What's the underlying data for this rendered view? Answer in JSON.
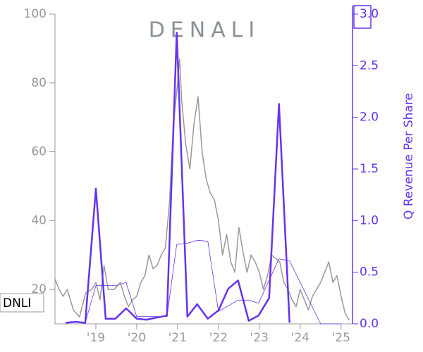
{
  "chart_data": {
    "type": "line",
    "logo": "DENALI",
    "y2label": "Q Revenue Per Share",
    "xlim": [
      2018.0,
      2025.28
    ],
    "xticks": [
      {
        "value": 2019,
        "label": "'19"
      },
      {
        "value": 2020,
        "label": "'20"
      },
      {
        "value": 2021,
        "label": "'21"
      },
      {
        "value": 2022,
        "label": "'22"
      },
      {
        "value": 2023,
        "label": "'23"
      },
      {
        "value": 2024,
        "label": "'24"
      },
      {
        "value": 2025,
        "label": "'25"
      }
    ],
    "ylim": [
      10,
      100
    ],
    "yticks": [
      20,
      40,
      60,
      80,
      100
    ],
    "y2lim": [
      0,
      3
    ],
    "y2ticks": [
      {
        "value": 0,
        "label": "0.0"
      },
      0.5,
      {
        "value": 1,
        "label": "1.0"
      },
      1.5,
      {
        "value": 2,
        "label": "2.0"
      },
      2.5,
      {
        "value": 3,
        "label": "3.0"
      }
    ],
    "series": [
      {
        "name": "DNLI",
        "color": "#999999",
        "width": 1.5,
        "x": [
          2018.0,
          2018.1,
          2018.2,
          2018.3,
          2018.45,
          2018.6,
          2018.75,
          2018.9,
          2019.0,
          2019.1,
          2019.2,
          2019.3,
          2019.45,
          2019.6,
          2019.7,
          2019.8,
          2019.9,
          2020.0,
          2020.1,
          2020.2,
          2020.3,
          2020.4,
          2020.5,
          2020.6,
          2020.7,
          2020.8,
          2020.9,
          2021.0,
          2021.05,
          2021.1,
          2021.2,
          2021.3,
          2021.4,
          2021.5,
          2021.6,
          2021.7,
          2021.8,
          2021.9,
          2022.0,
          2022.1,
          2022.2,
          2022.3,
          2022.4,
          2022.5,
          2022.6,
          2022.7,
          2022.8,
          2022.9,
          2023.0,
          2023.1,
          2023.2,
          2023.3,
          2023.4,
          2023.5,
          2023.6,
          2023.7,
          2023.8,
          2023.9,
          2024.0,
          2024.1,
          2024.2,
          2024.3,
          2024.5,
          2024.6,
          2024.7,
          2024.8,
          2024.9,
          2025.0,
          2025.1,
          2025.2
        ],
        "values": [
          23,
          20,
          18,
          20,
          14,
          12,
          19,
          20,
          22,
          17,
          27,
          20,
          20,
          22,
          18,
          15,
          17,
          18,
          22,
          24,
          30,
          26,
          27,
          30,
          32,
          45,
          68,
          80,
          87,
          75,
          62,
          55,
          68,
          76,
          60,
          52,
          48,
          46,
          40,
          30,
          36,
          28,
          25,
          38,
          31,
          25,
          30,
          28,
          25,
          20,
          24,
          30,
          29,
          28,
          22,
          20,
          17,
          15,
          20,
          17,
          14,
          18,
          22,
          25,
          28,
          22,
          24,
          18,
          13,
          11
        ]
      },
      {
        "color": "#6633ee",
        "width": 2.5,
        "axis": "y2",
        "x": [
          2018.26,
          2018.5,
          2018.74,
          2019.0,
          2019.24,
          2019.48,
          2019.74,
          2020.0,
          2020.24,
          2020.48,
          2020.74,
          2020.98,
          2021.24,
          2021.48,
          2021.74,
          2022.0,
          2022.24,
          2022.48,
          2022.74,
          2022.98,
          2023.24,
          2023.48,
          2023.74
        ],
        "values": [
          0.01,
          0.02,
          0.01,
          1.31,
          0.05,
          0.05,
          0.15,
          0.05,
          0.04,
          0.06,
          0.08,
          2.82,
          0.07,
          0.19,
          0.05,
          0.13,
          0.34,
          0.42,
          0.03,
          0.08,
          0.25,
          2.13,
          0.01
        ]
      },
      {
        "color": "#6633ee",
        "width": 0.8,
        "axis": "y2",
        "x": [
          2018.74,
          2019.0,
          2019.48,
          2019.74,
          2020.0,
          2020.74,
          2020.98,
          2021.24,
          2021.48,
          2021.74,
          2022.0,
          2022.48,
          2022.74,
          2022.98,
          2023.48,
          2023.74,
          2024.5,
          2025.0
        ],
        "values": [
          0.01,
          0.37,
          0.37,
          0.4,
          0.07,
          0.07,
          0.77,
          0.78,
          0.81,
          0.8,
          0.12,
          0.23,
          0.23,
          0.2,
          0.63,
          0.61,
          0.0,
          0.0
        ]
      }
    ]
  }
}
